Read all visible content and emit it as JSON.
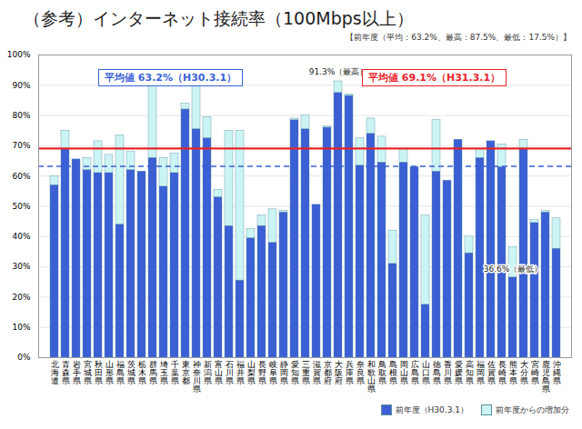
{
  "chart_data": {
    "type": "bar",
    "title": "（参考）インターネット接続率（100Mbps以上）",
    "subtitle": "【前年度（平均：63.2%、最高：87.5%、最低：17.5%）】",
    "categories": [
      "北海道",
      "青森県",
      "岩手県",
      "宮城県",
      "秋田県",
      "山形県",
      "福島県",
      "茨城県",
      "栃木県",
      "群馬県",
      "埼玉県",
      "千葉県",
      "東京都",
      "神奈川県",
      "新潟県",
      "富山県",
      "石川県",
      "福井県",
      "山梨県",
      "長野県",
      "岐阜県",
      "静岡県",
      "愛知県",
      "三重県",
      "滋賀県",
      "京都府",
      "大阪府",
      "兵庫県",
      "奈良県",
      "和歌山県",
      "鳥取県",
      "島根県",
      "岡山県",
      "広島県",
      "山口県",
      "徳島県",
      "香川県",
      "愛媛県",
      "高知県",
      "福岡県",
      "佐賀県",
      "長崎県",
      "熊本県",
      "大分県",
      "宮崎県",
      "鹿児島県",
      "沖縄県"
    ],
    "series": [
      {
        "name": "前年度（H30.3.1）",
        "color": "#3b5fd4",
        "values": [
          57,
          69,
          65.5,
          62,
          61,
          61,
          44,
          62,
          61.5,
          66,
          56.5,
          61,
          82,
          75.5,
          72.5,
          53,
          43.5,
          25.5,
          39.5,
          43.5,
          38,
          48,
          78.5,
          75.5,
          50.5,
          76,
          87.5,
          86.5,
          63.5,
          74,
          64.5,
          31,
          64.5,
          63,
          17.5,
          61.5,
          58.5,
          72,
          34.5,
          66,
          71.5,
          63,
          26.5,
          69,
          44.5,
          48,
          36
        ]
      },
      {
        "name": "前年度からの増加分",
        "color": "#ccf4f4",
        "values": [
          3,
          6,
          0,
          4,
          10.5,
          6,
          29.5,
          6,
          0,
          24,
          9.5,
          6.5,
          2,
          14.5,
          7,
          2.5,
          31.5,
          49.5,
          3,
          3.5,
          11,
          0.5,
          0.5,
          4.5,
          0,
          0.5,
          3.8,
          0.5,
          9,
          5,
          8.5,
          11,
          4.5,
          0,
          29.5,
          17,
          0,
          0,
          5.5,
          3,
          0,
          7.5,
          10.1,
          3,
          1,
          0.5,
          10
        ]
      }
    ],
    "stacked": true,
    "ylim": [
      0,
      100
    ],
    "yticks": [
      {
        "value": 0,
        "label": "0%"
      },
      {
        "value": 10,
        "label": "10%"
      },
      {
        "value": 20,
        "label": "20%"
      },
      {
        "value": 30,
        "label": "30%"
      },
      {
        "value": 40,
        "label": "40%"
      },
      {
        "value": 50,
        "label": "50%"
      },
      {
        "value": 60,
        "label": "60%"
      },
      {
        "value": 70,
        "label": "70%"
      },
      {
        "value": 80,
        "label": "80%"
      },
      {
        "value": 90,
        "label": "90%"
      },
      {
        "value": 100,
        "label": "100%"
      }
    ],
    "grid": true,
    "legend": "bottom-right",
    "reference_lines": [
      {
        "value": 63.2,
        "label": "平均値 63.2%（H30.3.1）",
        "color": "#3a62d6",
        "line_style": "dashed"
      },
      {
        "value": 69.1,
        "label": "平均値 69.1%（H31.3.1）",
        "color": "#e8242a",
        "line_style": "solid"
      }
    ],
    "annotations": [
      {
        "text": "91.3%（最高）",
        "category": "大阪府",
        "value": 91.3
      },
      {
        "text": "36.6%（最低）",
        "category": "熊本県",
        "value": 36.6
      }
    ]
  }
}
